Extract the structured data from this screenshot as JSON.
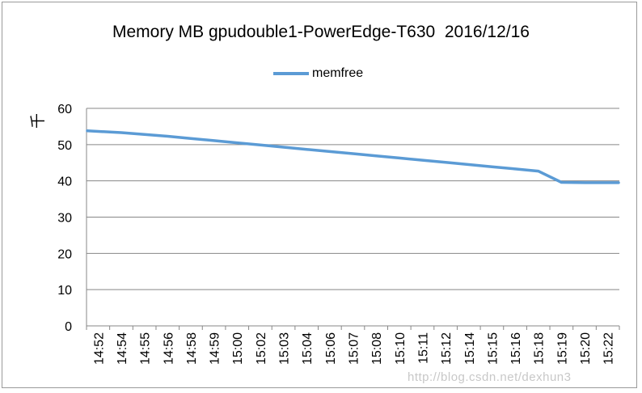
{
  "chart_data": {
    "type": "line",
    "title": "Memory MB gpudouble1-PowerEdge-T630  2016/12/16",
    "xlabel": "",
    "ylabel": "千",
    "ylim": [
      0,
      60
    ],
    "yticks": [
      0,
      10,
      20,
      30,
      40,
      50,
      60
    ],
    "grid": true,
    "legend_position": "top-center",
    "x": [
      "14:52",
      "14:54",
      "14:55",
      "14:56",
      "14:58",
      "14:59",
      "15:00",
      "15:02",
      "15:03",
      "15:04",
      "15:06",
      "15:07",
      "15:08",
      "15:10",
      "15:11",
      "15:12",
      "15:14",
      "15:15",
      "15:16",
      "15:18",
      "15:19",
      "15:20",
      "15:22"
    ],
    "series": [
      {
        "name": "memfree",
        "color": "#5b9bd5",
        "values": [
          53.8,
          53.3,
          52.8,
          52.3,
          51.7,
          51.1,
          50.5,
          49.9,
          49.3,
          48.7,
          48.1,
          47.5,
          46.9,
          46.3,
          45.7,
          45.1,
          44.5,
          43.9,
          43.3,
          42.7,
          39.6,
          39.5,
          39.5
        ]
      }
    ]
  },
  "watermark": "http://blog.csdn.net/dexhun3"
}
